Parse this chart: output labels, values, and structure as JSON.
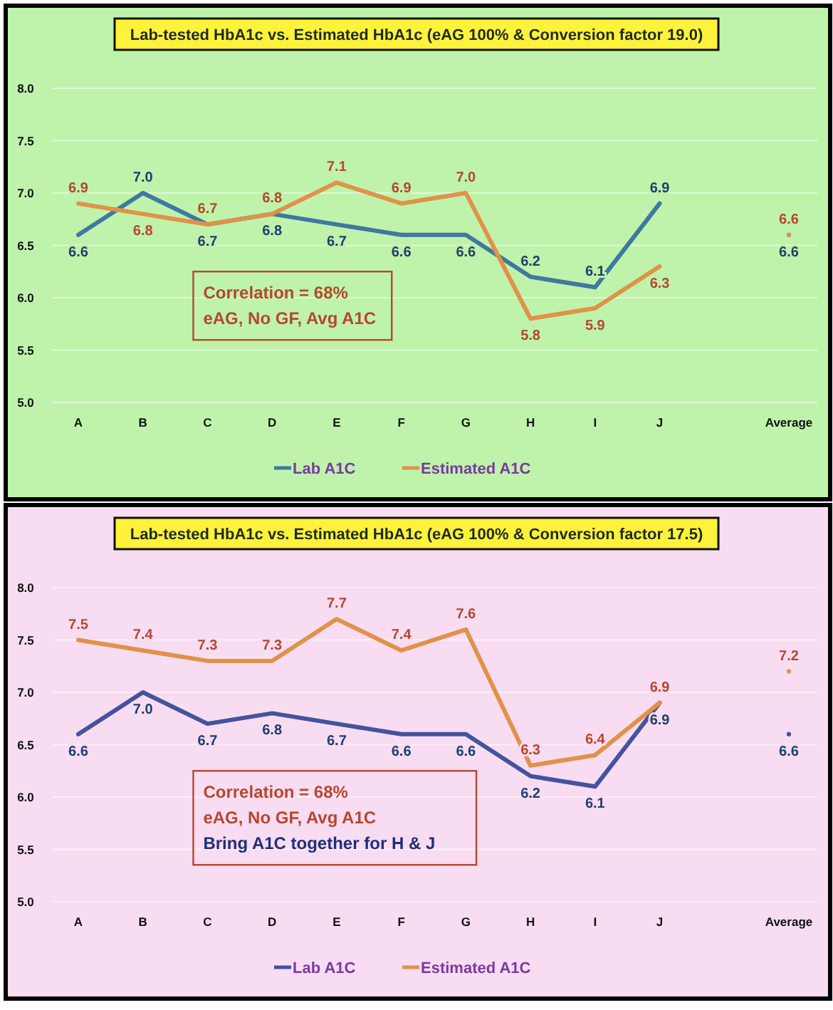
{
  "chart_data": [
    {
      "type": "line",
      "title": "Lab-tested HbA1c vs. Estimated HbA1c  (eAG 100% & Conversion factor 19.0)",
      "categories": [
        "A",
        "B",
        "C",
        "D",
        "E",
        "F",
        "G",
        "H",
        "I",
        "J",
        null,
        "Average"
      ],
      "ylim": [
        5,
        8
      ],
      "yticks": [
        {
          "value": 5,
          "label": "5.0"
        },
        {
          "value": 5.5,
          "label": "5.5"
        },
        {
          "value": 6,
          "label": "6.0"
        },
        {
          "value": 6.5,
          "label": "6.5"
        },
        {
          "value": 7,
          "label": "7.0"
        },
        {
          "value": 7.5,
          "label": "7.5"
        },
        {
          "value": 8,
          "label": "8.0"
        }
      ],
      "grid": "y",
      "legend": "bottom",
      "annotations": [
        "Correlation = 68%",
        "eAG, No GF, Avg A1C"
      ],
      "series": [
        {
          "name": "Lab A1C",
          "color": "#3f78a0",
          "values": [
            6.6,
            7.0,
            6.7,
            6.8,
            6.7,
            6.6,
            6.6,
            6.2,
            6.1,
            6.9,
            null,
            6.6
          ],
          "value_labels": [
            "6.6",
            "7.0",
            "6.7",
            "6.8",
            "6.7",
            "6.6",
            "6.6",
            "6.2",
            "6.1",
            "6.9",
            null,
            "6.6"
          ]
        },
        {
          "name": "Estimated A1C",
          "color": "#e0924a",
          "values": [
            6.9,
            6.8,
            6.7,
            6.8,
            7.1,
            6.9,
            7.0,
            5.8,
            5.9,
            6.3,
            null,
            6.6
          ],
          "value_labels": [
            "6.9",
            "6.8",
            "6.7",
            "6.8",
            "7.1",
            "6.9",
            "7.0",
            "5.8",
            "5.9",
            "6.3",
            null,
            "6.6"
          ]
        }
      ]
    },
    {
      "type": "line",
      "title": "Lab-tested HbA1c vs. Estimated HbA1c  (eAG 100% & Conversion factor 17.5)",
      "categories": [
        "A",
        "B",
        "C",
        "D",
        "E",
        "F",
        "G",
        "H",
        "I",
        "J",
        null,
        "Average"
      ],
      "ylim": [
        5,
        8
      ],
      "yticks": [
        {
          "value": 5,
          "label": "5.0"
        },
        {
          "value": 5.5,
          "label": "5.5"
        },
        {
          "value": 6,
          "label": "6.0"
        },
        {
          "value": 6.5,
          "label": "6.5"
        },
        {
          "value": 7,
          "label": "7.0"
        },
        {
          "value": 7.5,
          "label": "7.5"
        },
        {
          "value": 8,
          "label": "8.0"
        }
      ],
      "grid": "y",
      "legend": "bottom",
      "annotations": [
        "Correlation = 68%",
        "eAG, No GF, Avg A1C",
        "Bring A1C together for H & J"
      ],
      "series": [
        {
          "name": "Lab A1C",
          "color": "#44539c",
          "values": [
            6.6,
            7.0,
            6.7,
            6.8,
            6.7,
            6.6,
            6.6,
            6.2,
            6.1,
            6.9,
            null,
            6.6
          ],
          "value_labels": [
            "6.6",
            "7.0",
            "6.7",
            "6.8",
            "6.7",
            "6.6",
            "6.6",
            "6.2",
            "6.1",
            "6.9",
            null,
            "6.6"
          ]
        },
        {
          "name": "Estimated A1C",
          "color": "#e0924a",
          "values": [
            7.5,
            7.4,
            7.3,
            7.3,
            7.7,
            7.4,
            7.6,
            6.3,
            6.4,
            6.9,
            null,
            7.2
          ],
          "value_labels": [
            "7.5",
            "7.4",
            "7.3",
            "7.3",
            "7.7",
            "7.4",
            "7.6",
            "6.3",
            "6.4",
            "6.9",
            null,
            "7.2"
          ]
        }
      ]
    }
  ]
}
